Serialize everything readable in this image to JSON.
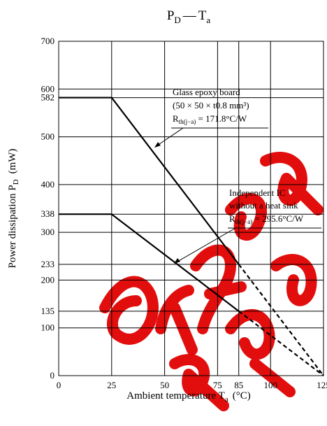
{
  "chart_data": {
    "type": "line",
    "title": {
      "main": "P",
      "main_sub": "D",
      "dash": "—",
      "second": "T",
      "second_sub": "a"
    },
    "xlabel": {
      "text": "Ambient temperature  T",
      "sub": "a",
      "unit": "(°C)"
    },
    "ylabel": {
      "text": "Power dissipation  P",
      "sub": "D",
      "unit": "(mW)"
    },
    "xlim": [
      0,
      125
    ],
    "ylim": [
      0,
      700
    ],
    "x_ticks": [
      0,
      25,
      50,
      75,
      85,
      100,
      125
    ],
    "x_tick_labels": [
      "0",
      "25",
      "50",
      "75",
      "85",
      "100",
      "125"
    ],
    "y_ticks": [
      0,
      100,
      135,
      200,
      233,
      300,
      338,
      400,
      500,
      582,
      600,
      700
    ],
    "y_tick_labels": [
      "0",
      "100",
      "135",
      "200",
      "233",
      "300",
      "338",
      "400",
      "500",
      "582",
      "600",
      "700"
    ],
    "x_grid": [
      25,
      50,
      75,
      85,
      100
    ],
    "y_grid": [
      100,
      135,
      200,
      233,
      300,
      338,
      400,
      500,
      582,
      600
    ],
    "grid": true,
    "series": [
      {
        "x": [
          0,
          25,
          85,
          125
        ],
        "y": [
          582,
          582,
          233,
          0
        ],
        "dashed_from_x": 85,
        "annotation": [
          "Glass epoxy board",
          "(50 × 50 × t0.8 mm³)",
          "R",
          "th(j−a)",
          " = 171.8°C/W"
        ]
      },
      {
        "x": [
          0,
          25,
          85,
          125
        ],
        "y": [
          338,
          338,
          135,
          0
        ],
        "dashed_from_x": 85,
        "annotation": [
          "Independent IC",
          "without a heat sink",
          "R",
          "th(j−a)",
          " = 295.6°C/W"
        ]
      }
    ]
  },
  "watermark": {
    "color": "#e00000"
  }
}
